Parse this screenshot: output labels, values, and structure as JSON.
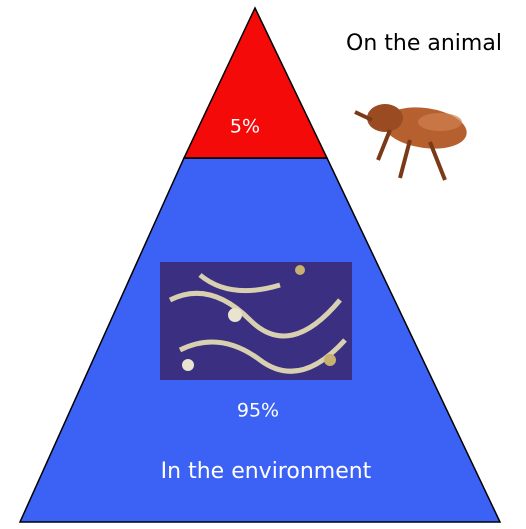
{
  "top": {
    "label": "On the animal",
    "share": "5%"
  },
  "bottom": {
    "label": "In the environment",
    "share": "95%"
  }
}
